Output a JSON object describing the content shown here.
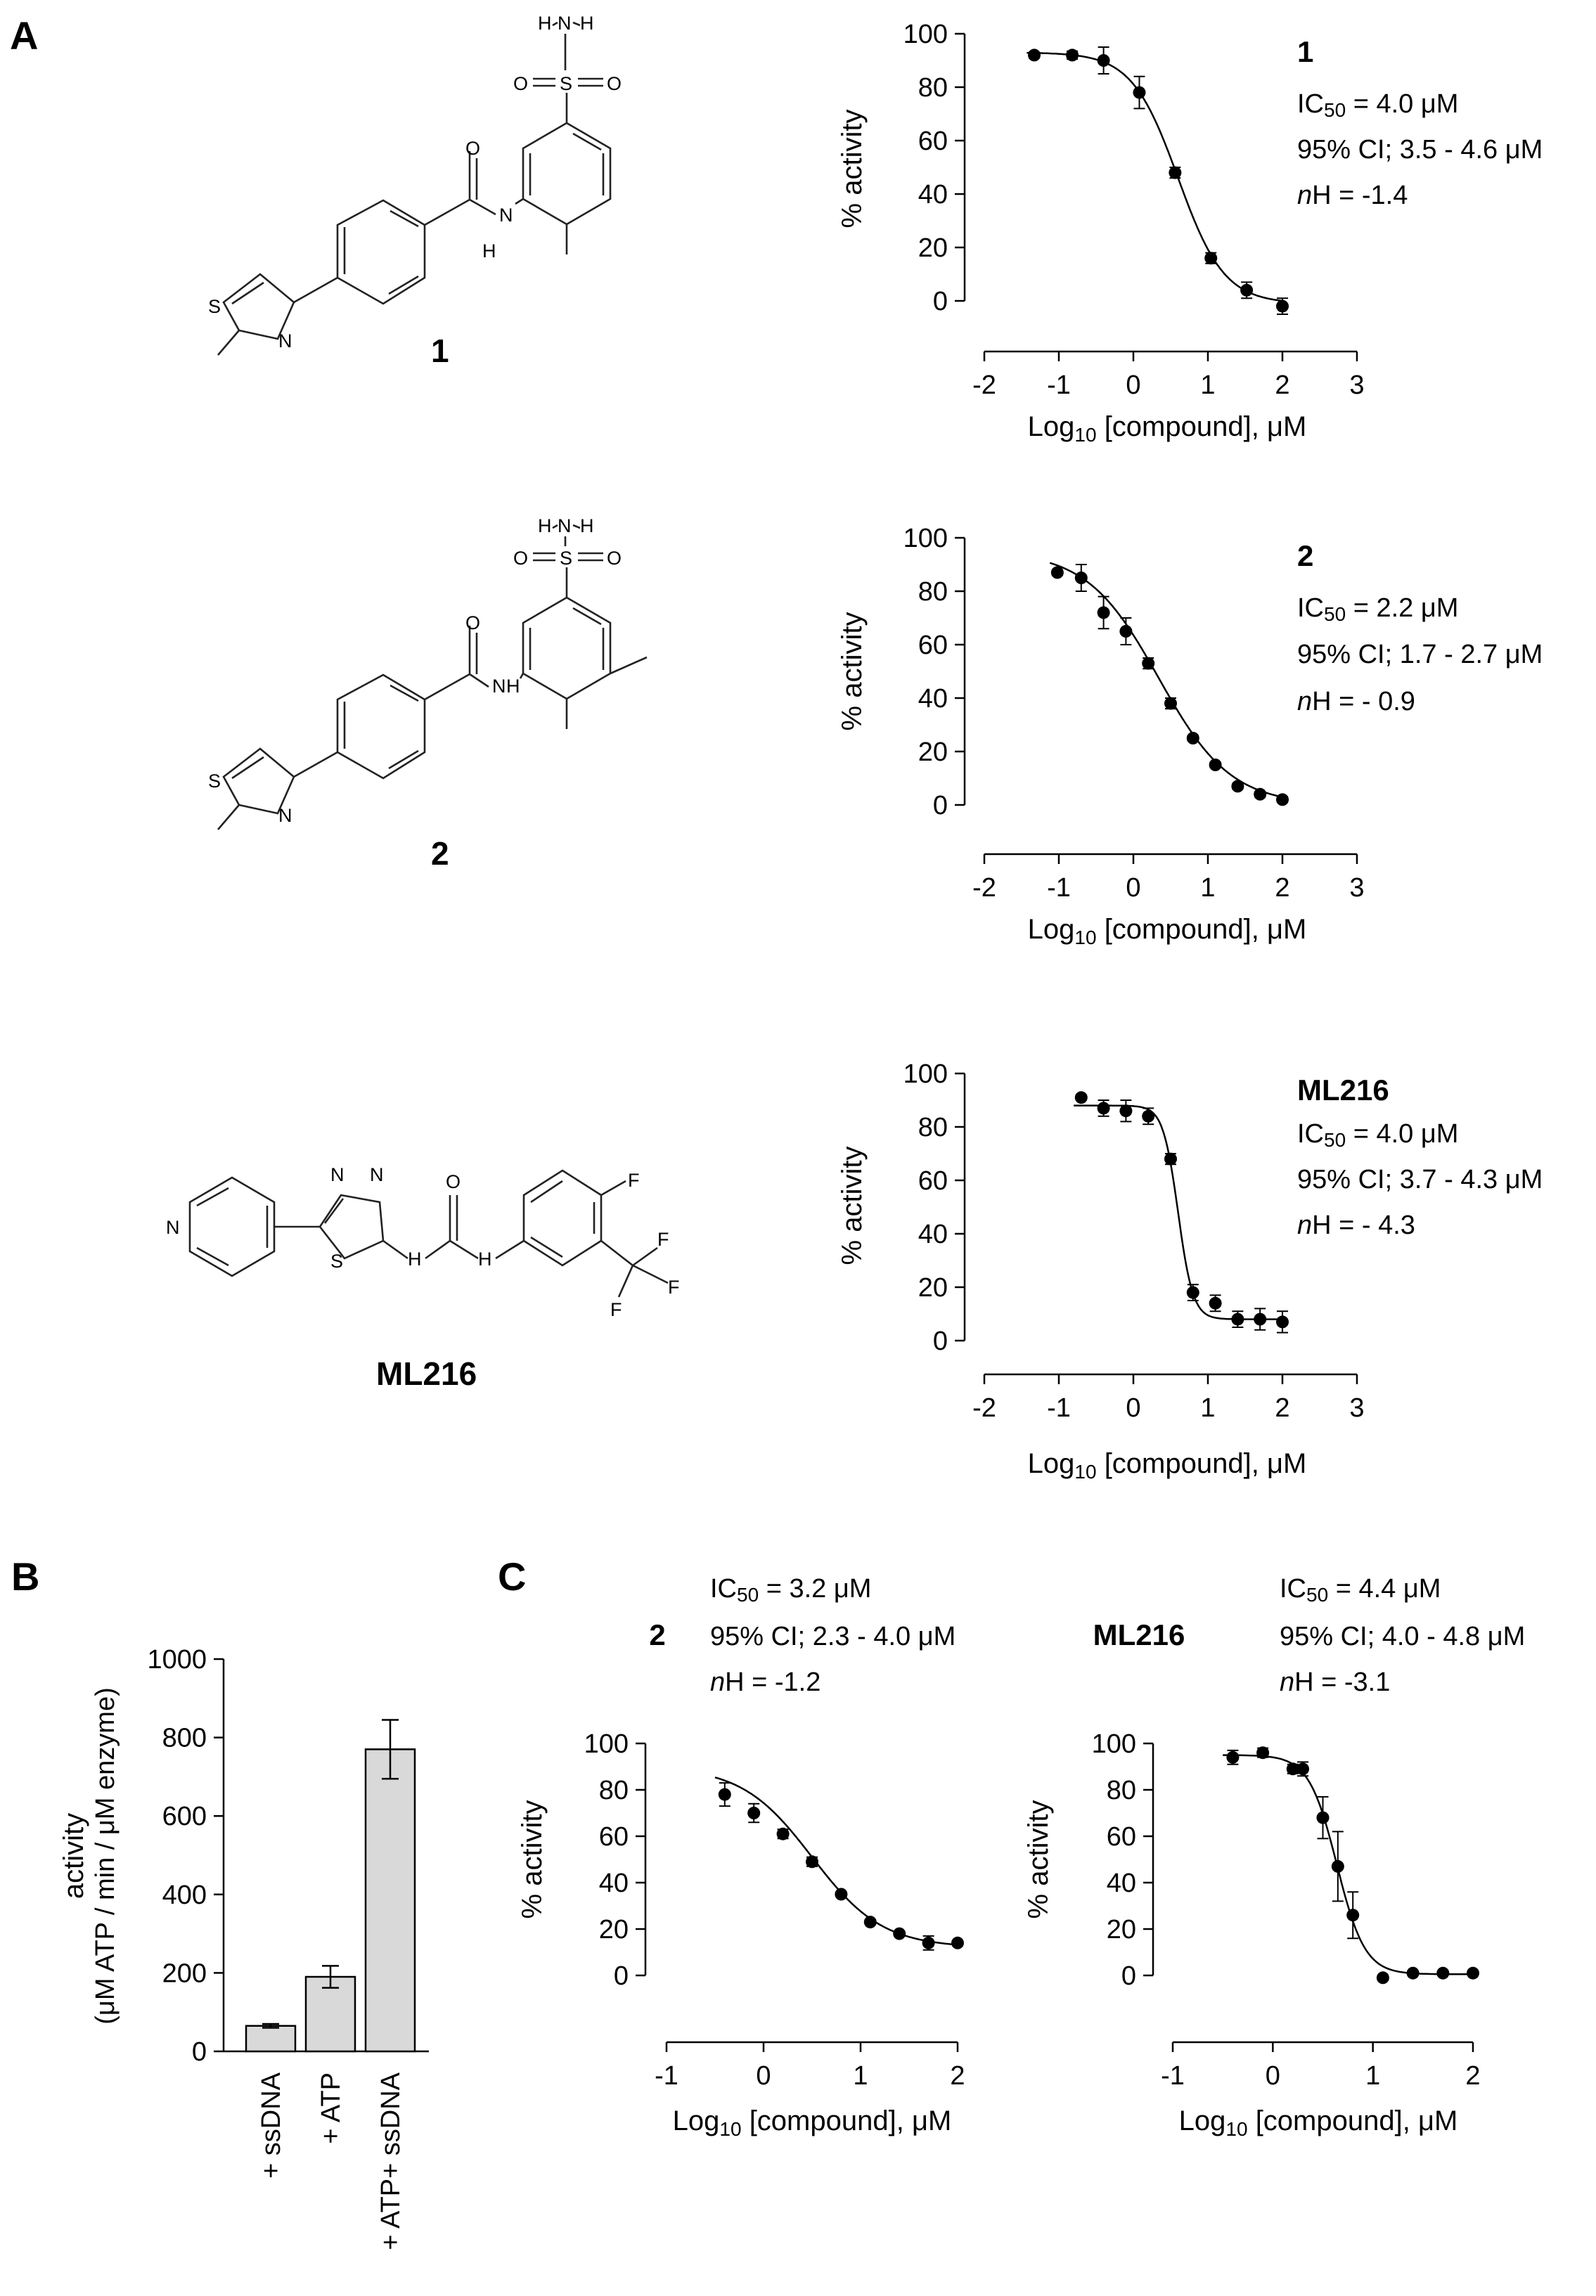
{
  "panels": {
    "a": "A",
    "b": "B",
    "c": "C"
  },
  "compounds": {
    "c1": "1",
    "c2": "2",
    "ml": "ML216"
  },
  "atoms": {
    "S": "S",
    "N": "N",
    "O": "O",
    "H": "H",
    "F": "F"
  },
  "chart_data": [
    {
      "id": "A1",
      "type": "scatter",
      "title": "1",
      "annotations": [
        "IC50 = 4.0 μM",
        "95% CI; 3.5 - 4.6 μM",
        "nH = -1.4"
      ],
      "ic50_label": "IC",
      "ic50_sub": "50",
      "ic50_value": " = 4.0 μM",
      "ci": "95% CI; 3.5 - 4.6 μM",
      "nh_italic": "n",
      "nh_rest": "H = -1.4",
      "xlabel_pre": "Log",
      "xlabel_sub": "10",
      "xlabel_post": " [compound], μM",
      "ylabel": "% activity",
      "xlim": [
        -2,
        3
      ],
      "ylim": [
        0,
        100
      ],
      "xticks": [
        "-2",
        "-1",
        "0",
        "1",
        "2",
        "3"
      ],
      "yticks": [
        "0",
        "20",
        "40",
        "60",
        "80",
        "100"
      ],
      "x": [
        -1.33,
        -0.82,
        -0.4,
        0.08,
        0.56,
        1.04,
        1.52,
        2.0
      ],
      "y": [
        92,
        92,
        90,
        78,
        48,
        16,
        4,
        -2
      ],
      "err": [
        1,
        1.5,
        5,
        6,
        2,
        2,
        3,
        3
      ],
      "fit": {
        "top": 93,
        "bottom": -1,
        "logIC50": 0.6,
        "hill": 1.4
      }
    },
    {
      "id": "A2",
      "type": "scatter",
      "title": "2",
      "annotations": [
        "IC50 = 2.2 μM",
        "95% CI; 1.7 - 2.7 μM",
        "nH = - 0.9"
      ],
      "ic50_label": "IC",
      "ic50_sub": "50",
      "ic50_value": " = 2.2 μM",
      "ci": "95% CI; 1.7 - 2.7 μM",
      "nh_italic": "n",
      "nh_rest": "H = - 0.9",
      "xlabel_pre": "Log",
      "xlabel_sub": "10",
      "xlabel_post": " [compound], μM",
      "ylabel": "% activity",
      "xlim": [
        -2,
        3
      ],
      "ylim": [
        0,
        100
      ],
      "xticks": [
        "-2",
        "-1",
        "0",
        "1",
        "2",
        "3"
      ],
      "yticks": [
        "0",
        "20",
        "40",
        "60",
        "80",
        "100"
      ],
      "x": [
        -1.02,
        -0.7,
        -0.4,
        -0.1,
        0.2,
        0.5,
        0.8,
        1.1,
        1.4,
        1.7,
        2.0
      ],
      "y": [
        87,
        85,
        72,
        65,
        53,
        38,
        25,
        15,
        7,
        4,
        2
      ],
      "err": [
        1,
        5,
        6,
        5,
        2,
        2,
        1,
        1,
        1,
        1,
        1
      ],
      "fit": {
        "top": 95,
        "bottom": 0,
        "logIC50": 0.34,
        "hill": 0.9
      }
    },
    {
      "id": "A3",
      "type": "scatter",
      "title": "ML216",
      "annotations": [
        "IC50 = 4.0 μM",
        "95% CI; 3.7 - 4.3  μM",
        "nH = - 4.3"
      ],
      "ic50_label": "IC",
      "ic50_sub": "50",
      "ic50_value": " = 4.0 μM",
      "ci": "95% CI; 3.7 - 4.3  μM",
      "nh_italic": "n",
      "nh_rest": "H = - 4.3",
      "xlabel_pre": "Log",
      "xlabel_sub": "10",
      "xlabel_post": " [compound], μM",
      "ylabel": "% activity",
      "xlim": [
        -2,
        3
      ],
      "ylim": [
        0,
        100
      ],
      "xticks": [
        "-2",
        "-1",
        "0",
        "1",
        "2",
        "3"
      ],
      "yticks": [
        "0",
        "20",
        "40",
        "60",
        "80",
        "100"
      ],
      "x": [
        -0.7,
        -0.4,
        -0.1,
        0.2,
        0.5,
        0.8,
        1.1,
        1.4,
        1.7,
        2.0
      ],
      "y": [
        91,
        87,
        86,
        84,
        68,
        18,
        14,
        8,
        8,
        7
      ],
      "err": [
        1,
        3,
        4,
        3,
        2,
        3,
        3,
        3,
        4,
        4
      ],
      "fit": {
        "top": 88,
        "bottom": 8,
        "logIC50": 0.6,
        "hill": 4.3
      }
    },
    {
      "id": "B",
      "type": "bar",
      "categories": [
        "+ ssDNA",
        "+ ATP",
        "+ ATP+ ssDNA"
      ],
      "values": [
        65,
        190,
        770
      ],
      "err": [
        5,
        28,
        75
      ],
      "ylabel_line1": "activity",
      "ylabel_line2": "(μM ATP / min / μM enzyme)",
      "ylim": [
        0,
        1000
      ],
      "yticks": [
        "0",
        "200",
        "400",
        "600",
        "800",
        "1000"
      ]
    },
    {
      "id": "C1",
      "type": "scatter",
      "title": "2",
      "annotations": [
        "IC50 = 3.2 μM",
        "95% CI; 2.3 - 4.0 μM",
        "nH = -1.2"
      ],
      "ic50_label": "IC",
      "ic50_sub": "50",
      "ic50_value": " = 3.2 μM",
      "ci": "95% CI; 2.3 - 4.0 μM",
      "nh_italic": "n",
      "nh_rest": "H = -1.2",
      "xlabel_pre": "Log",
      "xlabel_sub": "10",
      "xlabel_post": " [compound], μM",
      "ylabel": "% activity",
      "xlim": [
        -1,
        2
      ],
      "ylim": [
        0,
        100
      ],
      "xticks": [
        "-1",
        "0",
        "1",
        "2"
      ],
      "yticks": [
        "0",
        "20",
        "40",
        "60",
        "80",
        "100"
      ],
      "x": [
        -0.4,
        -0.1,
        0.2,
        0.5,
        0.8,
        1.1,
        1.4,
        1.7,
        2.0
      ],
      "y": [
        78,
        70,
        61,
        49,
        35,
        23,
        18,
        14,
        14
      ],
      "err": [
        5,
        4,
        2,
        2,
        1,
        1,
        1,
        3,
        1
      ],
      "fit": {
        "top": 90,
        "bottom": 12,
        "logIC50": 0.5,
        "hill": 1.2
      }
    },
    {
      "id": "C2",
      "type": "scatter",
      "title": "ML216",
      "annotations": [
        "IC50 = 4.4 μM",
        "95% CI; 4.0 - 4.8 μM",
        "nH = -3.1"
      ],
      "ic50_label": "IC",
      "ic50_sub": "50",
      "ic50_value": " = 4.4 μM",
      "ci": "95% CI; 4.0 - 4.8 μM",
      "nh_italic": "n",
      "nh_rest": "H = -3.1",
      "xlabel_pre": "Log",
      "xlabel_sub": "10",
      "xlabel_post": " [compound], μM",
      "ylabel": "% activity",
      "xlim": [
        -1,
        2
      ],
      "ylim": [
        0,
        100
      ],
      "xticks": [
        "-1",
        "0",
        "1",
        "2"
      ],
      "yticks": [
        "0",
        "20",
        "40",
        "60",
        "80",
        "100"
      ],
      "x": [
        -0.4,
        -0.1,
        0.2,
        0.3,
        0.5,
        0.65,
        0.8,
        1.1,
        1.4,
        1.7,
        2.0
      ],
      "y": [
        94,
        96,
        89,
        89,
        68,
        47,
        26,
        -1,
        1,
        1,
        1
      ],
      "err": [
        3,
        2,
        2,
        3,
        9,
        15,
        10,
        1,
        1,
        1,
        1
      ],
      "fit": {
        "top": 95,
        "bottom": 0.5,
        "logIC50": 0.64,
        "hill": 3.1
      }
    }
  ]
}
